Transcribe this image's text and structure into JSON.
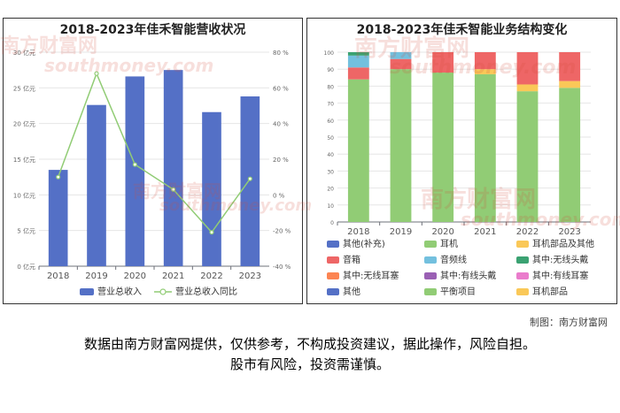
{
  "charts": [
    {
      "title": "2018-2023年佳禾智能营收状况"
    },
    {
      "title": "2018-2023年佳禾智能业务结构变化"
    }
  ],
  "chart_data": [
    {
      "type": "bar",
      "title": "2018-2023年佳禾智能营收状况",
      "categories": [
        "2018",
        "2019",
        "2020",
        "2021",
        "2022",
        "2023"
      ],
      "ylim": [
        0,
        30
      ],
      "y_ticks": [
        "0 亿元",
        "5 亿元",
        "10 亿元",
        "15 亿元",
        "20 亿元",
        "25 亿元",
        "30 亿元"
      ],
      "y2lim": [
        -40,
        80
      ],
      "y2_ticks": [
        "-40 %",
        "-20 %",
        "0 %",
        "20 %",
        "40 %",
        "60 %",
        "80 %"
      ],
      "grid": true,
      "legend_position": "bottom",
      "series": [
        {
          "name": "营业总收入",
          "type": "bar",
          "axis": "left",
          "color": "#5470c6",
          "values": [
            13.5,
            22.6,
            26.6,
            27.5,
            21.6,
            23.8
          ]
        },
        {
          "name": "营业总收入同比",
          "type": "line",
          "axis": "right",
          "color": "#91cc75",
          "values": [
            10,
            68,
            17,
            3,
            -21,
            9
          ]
        }
      ]
    },
    {
      "type": "bar",
      "stacked": true,
      "title": "2018-2023年佳禾智能业务结构变化",
      "categories": [
        "2018",
        "2019",
        "2020",
        "2021",
        "2022",
        "2023"
      ],
      "ylim": [
        0,
        100
      ],
      "y_ticks": [
        "0",
        "10",
        "20",
        "30",
        "40",
        "50",
        "60",
        "70",
        "80",
        "90",
        "100"
      ],
      "grid": true,
      "legend_position": "bottom",
      "legend": [
        {
          "name": "其他(补充)",
          "color": "#5470c6"
        },
        {
          "name": "耳机",
          "color": "#91cc75"
        },
        {
          "name": "耳机部品及其他",
          "color": "#fac858"
        },
        {
          "name": "音箱",
          "color": "#ee6666"
        },
        {
          "name": "音频线",
          "color": "#73c0de"
        },
        {
          "name": "其中:无线头戴",
          "color": "#3ba272"
        },
        {
          "name": "其中:无线耳塞",
          "color": "#fc8452"
        },
        {
          "name": "其中:有线头戴",
          "color": "#9a60b4"
        },
        {
          "name": "其中:有线耳塞",
          "color": "#ea7ccc"
        },
        {
          "name": "其他",
          "color": "#5470c6"
        },
        {
          "name": "平衡项目",
          "color": "#91cc75"
        },
        {
          "name": "耳机部品",
          "color": "#fac858"
        }
      ],
      "series": [
        {
          "name": "耳机",
          "color": "#91cc75",
          "values": [
            84,
            90,
            88,
            87,
            77,
            79
          ]
        },
        {
          "name": "耳机部品及其他",
          "color": "#fac858",
          "values": [
            0,
            0,
            0,
            3,
            4,
            4
          ]
        },
        {
          "name": "音箱",
          "color": "#ee6666",
          "values": [
            7,
            6,
            12,
            10,
            19,
            17
          ]
        },
        {
          "name": "音频线",
          "color": "#73c0de",
          "values": [
            7,
            4,
            0,
            0,
            0,
            0
          ]
        },
        {
          "name": "其中:无线头戴",
          "color": "#3ba272",
          "values": [
            2,
            0,
            0,
            0,
            0,
            0
          ]
        }
      ]
    }
  ],
  "watermark": {
    "cn": "南方财富网",
    "en": "southmoney.com"
  },
  "credit": "制图：南方财富网",
  "disclaimer": {
    "line1": "数据由南方财富网提供，仅供参考，不构成投资建议，据此操作，风险自担。",
    "line2": "股市有风险，投资需谨慎。"
  }
}
